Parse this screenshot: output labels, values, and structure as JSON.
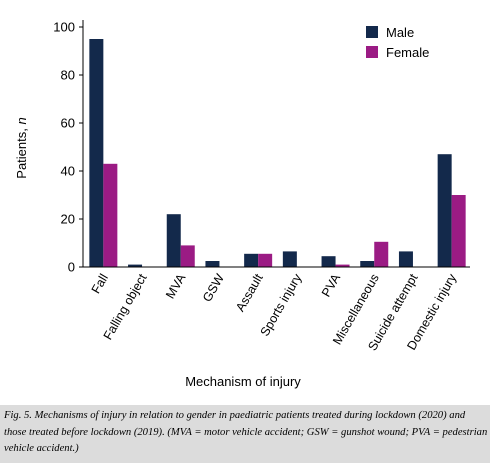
{
  "chart_data": {
    "type": "bar",
    "categories": [
      "Fall",
      "Falling object",
      "MVA",
      "GSW",
      "Assault",
      "Sports injury",
      "PVA",
      "Miscellaneous",
      "Suicide attempt",
      "Domestic injury"
    ],
    "series": [
      {
        "name": "Male",
        "values": [
          95,
          1,
          22,
          2.5,
          5.5,
          6.5,
          4.5,
          2.5,
          6.5,
          47
        ],
        "color": "#13294b"
      },
      {
        "name": "Female",
        "values": [
          43,
          0,
          9,
          0,
          5.5,
          0,
          1,
          10.5,
          0,
          30
        ],
        "color": "#9b1b84"
      }
    ],
    "xlabel": "Mechanism of injury",
    "ylabel_prefix": "Patients, ",
    "ylabel_var": "n",
    "ylim": [
      0,
      100
    ],
    "yticks": [
      0,
      20,
      40,
      60,
      80,
      100
    ],
    "legend_position": "top-right",
    "grid": false
  },
  "caption": "Fig. 5. Mechanisms of injury in relation to gender in paediatric patients treated during lockdown (2020) and those treated before lockdown (2019). (MVA = motor vehicle accident; GSW = gunshot wound; PVA = pedestrian vehicle accident.)"
}
